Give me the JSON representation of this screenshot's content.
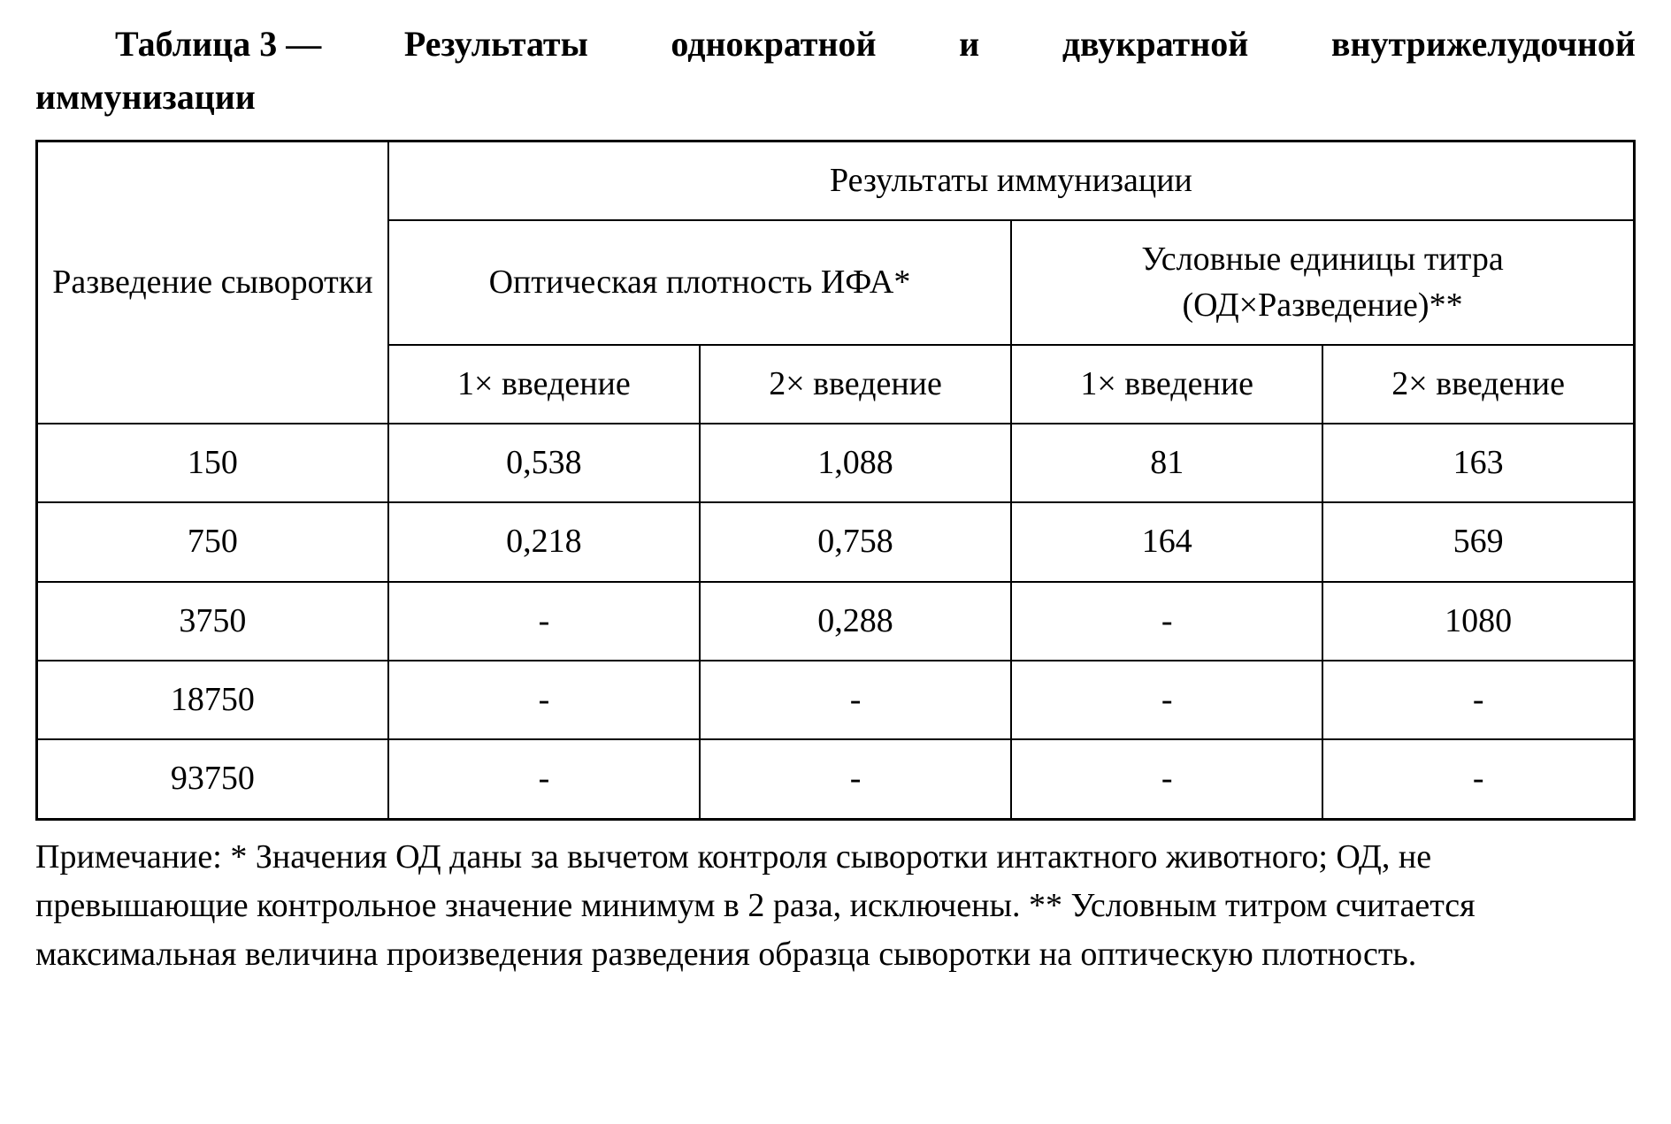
{
  "title": {
    "prefix": "Таблица 3 —",
    "words_line1": [
      "Результаты",
      "однократной",
      "и",
      "двукратной",
      "внутрижелудочной"
    ],
    "line2": "иммунизации"
  },
  "table": {
    "col_header_left": "Разведение сыворотки",
    "group_header": "Результаты иммунизации",
    "sub1": "Оптическая плотность ИФА*",
    "sub2": "Условные единицы титра (ОД×Разведение)**",
    "leaf1": "1× введение",
    "leaf2": "2× введение",
    "leaf3": "1× введение",
    "leaf4": "2× введение",
    "rows": [
      {
        "dil": "150",
        "od1": "0,538",
        "od2": "1,088",
        "t1": "81",
        "t2": "163"
      },
      {
        "dil": "750",
        "od1": "0,218",
        "od2": "0,758",
        "t1": "164",
        "t2": "569"
      },
      {
        "dil": "3750",
        "od1": "-",
        "od2": "0,288",
        "t1": "-",
        "t2": "1080"
      },
      {
        "dil": "18750",
        "od1": "-",
        "od2": "-",
        "t1": "-",
        "t2": "-"
      },
      {
        "dil": "93750",
        "od1": "-",
        "od2": "-",
        "t1": "-",
        "t2": "-"
      }
    ]
  },
  "note": "Примечание: * Значения ОД даны за вычетом контроля сыворотки интактного животного; ОД, не превышающие контрольное значение минимум в 2 раза, исключены. ** Условным титром считается максимальная величина произведения разведения образца сыворотки на оптическую плотность."
}
